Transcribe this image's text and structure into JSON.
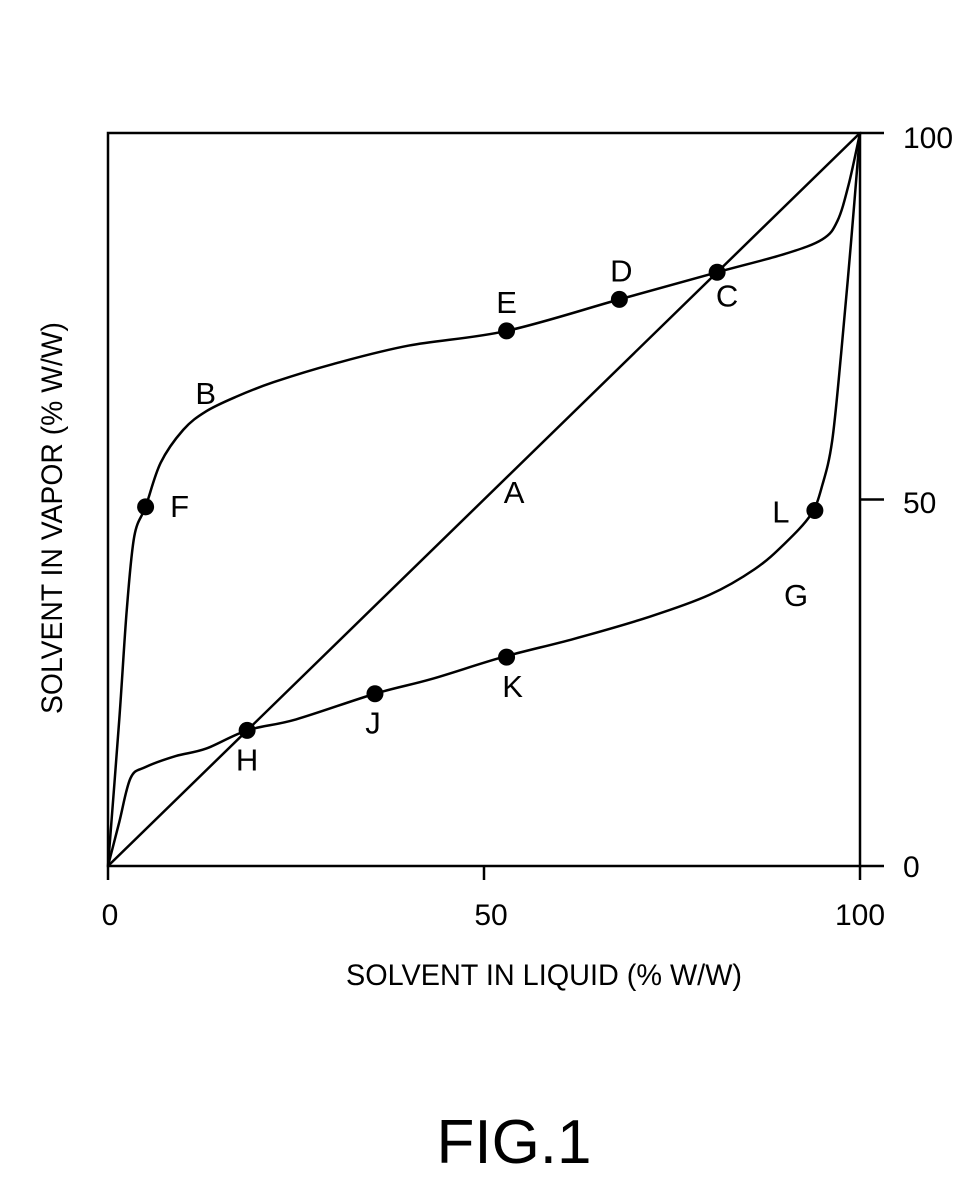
{
  "figure_label": "FIG.1",
  "chart_data": {
    "type": "line",
    "xlabel": "SOLVENT IN LIQUID (% W/W)",
    "ylabel": "SOLVENT IN VAPOR (% W/W)",
    "xlim": [
      0,
      100
    ],
    "ylim": [
      0,
      100
    ],
    "x_ticks": [
      "0",
      "50",
      "100"
    ],
    "y_ticks": [
      "0",
      "50",
      "100"
    ],
    "grid": false,
    "series": [
      {
        "name": "A",
        "x": [
          0,
          100
        ],
        "y": [
          0,
          100
        ]
      },
      {
        "name": "B",
        "x": [
          0,
          1.5,
          2.5,
          3.5,
          5,
          7,
          10,
          13,
          17,
          22,
          30,
          40,
          53,
          68,
          81,
          90,
          95,
          97,
          98.5,
          100
        ],
        "y": [
          0,
          20,
          35,
          45,
          49,
          55,
          59.5,
          62,
          64,
          66,
          68.5,
          71,
          73,
          77.3,
          81,
          83.5,
          85.5,
          88,
          93,
          100
        ]
      },
      {
        "name": "G",
        "x": [
          0,
          1.5,
          3,
          5,
          9,
          13,
          18.5,
          25,
          35.5,
          43,
          52.5,
          62,
          72,
          80,
          86,
          90,
          93.5,
          95,
          96.3,
          97.5,
          98.8,
          100
        ],
        "y": [
          0,
          6,
          12,
          13.5,
          15,
          16,
          18.5,
          20,
          23.5,
          25.5,
          28.5,
          31,
          34,
          37,
          40.5,
          44,
          48,
          52,
          58,
          70,
          85,
          100
        ]
      }
    ],
    "points": [
      {
        "label": "C",
        "x": 81,
        "y": 81
      },
      {
        "label": "D",
        "x": 68,
        "y": 77.3
      },
      {
        "label": "E",
        "x": 53,
        "y": 73
      },
      {
        "label": "F",
        "x": 5,
        "y": 49
      },
      {
        "label": "H",
        "x": 18.5,
        "y": 18.5
      },
      {
        "label": "J",
        "x": 35.5,
        "y": 23.5
      },
      {
        "label": "K",
        "x": 53,
        "y": 28.5
      },
      {
        "label": "L",
        "x": 94,
        "y": 48.5
      }
    ],
    "curve_labels": [
      {
        "label": "A",
        "x": 54,
        "y": 51
      },
      {
        "label": "B",
        "x": 13,
        "y": 64.5
      },
      {
        "label": "G",
        "x": 91.5,
        "y": 37
      }
    ]
  }
}
